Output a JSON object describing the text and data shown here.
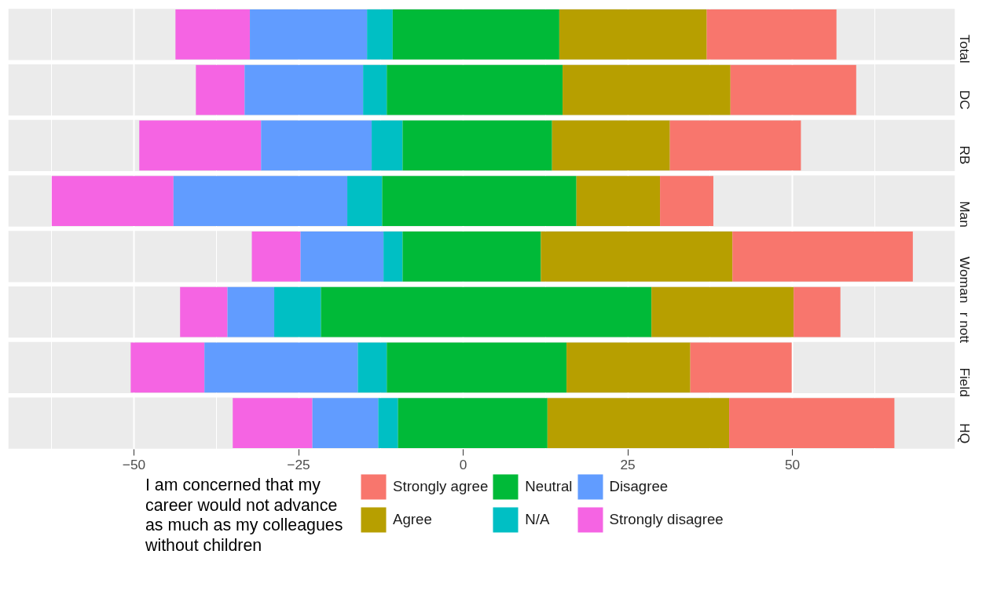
{
  "chart_data": {
    "type": "bar",
    "orientation": "horizontal",
    "categories": [
      "Total",
      "DC",
      "RB",
      "Man",
      "Woman",
      "r nott",
      "Field",
      "HQ"
    ],
    "series": [
      {
        "name": "Strongly disagree",
        "color": "#f564e3",
        "base": [
          -43.7,
          -40.6,
          -49.2,
          -62.5,
          -32.1,
          -43.0,
          -50.5,
          -35.0
        ],
        "values": [
          11.3,
          7.4,
          18.5,
          18.5,
          7.4,
          7.2,
          11.2,
          12.1
        ]
      },
      {
        "name": "Disagree",
        "color": "#619cff",
        "base": [
          -32.4,
          -33.2,
          -30.7,
          -44.0,
          -24.7,
          -35.8,
          -39.3,
          -22.9
        ],
        "values": [
          17.8,
          18.0,
          16.8,
          26.4,
          12.6,
          7.1,
          23.3,
          10.0
        ]
      },
      {
        "name": "N/A",
        "color": "#00bfc4",
        "base": [
          -14.6,
          -15.2,
          -13.9,
          -17.6,
          -12.1,
          -28.7,
          -16.0,
          -12.9
        ],
        "values": [
          3.9,
          3.6,
          4.7,
          5.3,
          2.9,
          7.1,
          4.4,
          3.0
        ]
      },
      {
        "name": "Neutral",
        "color": "#00ba38",
        "base": [
          -10.7,
          -11.6,
          -9.2,
          -12.3,
          -9.2,
          -21.6,
          -11.6,
          -9.9
        ],
        "values": [
          25.3,
          26.7,
          22.7,
          29.5,
          21.0,
          50.2,
          27.3,
          22.7
        ]
      },
      {
        "name": "Agree",
        "color": "#b79f00",
        "base": [
          14.6,
          15.1,
          13.5,
          17.2,
          11.8,
          28.6,
          15.7,
          12.8
        ],
        "values": [
          22.4,
          25.5,
          17.9,
          12.7,
          29.1,
          21.6,
          18.8,
          27.6
        ]
      },
      {
        "name": "Strongly agree",
        "color": "#f8766d",
        "base": [
          37.0,
          40.6,
          31.4,
          29.9,
          40.9,
          50.2,
          34.5,
          40.4
        ],
        "values": [
          19.7,
          19.1,
          19.9,
          8.1,
          27.4,
          7.1,
          15.4,
          25.1
        ]
      }
    ],
    "xlim": [
      -69.1,
      74.7
    ],
    "xticks": [
      -50,
      -25,
      0,
      25,
      50
    ],
    "grid": "x",
    "legend": "bottom",
    "legend_title": "I am concerned that my career would not advance as much as my colleagues without children"
  }
}
